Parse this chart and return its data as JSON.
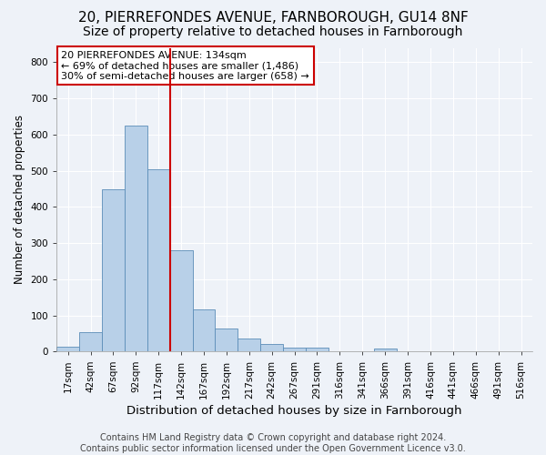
{
  "title": "20, PIERREFONDES AVENUE, FARNBOROUGH, GU14 8NF",
  "subtitle": "Size of property relative to detached houses in Farnborough",
  "xlabel": "Distribution of detached houses by size in Farnborough",
  "ylabel": "Number of detached properties",
  "bar_values": [
    13,
    55,
    450,
    625,
    505,
    280,
    117,
    63,
    35,
    22,
    10,
    10,
    0,
    0,
    8,
    0,
    0,
    0,
    0,
    0
  ],
  "bin_labels": [
    "17sqm",
    "42sqm",
    "67sqm",
    "92sqm",
    "117sqm",
    "142sqm",
    "167sqm",
    "192sqm",
    "217sqm",
    "242sqm",
    "267sqm",
    "291sqm",
    "316sqm",
    "341sqm",
    "366sqm",
    "391sqm",
    "416sqm",
    "441sqm",
    "466sqm",
    "491sqm",
    "516sqm"
  ],
  "bar_color": "#b8d0e8",
  "bar_edgecolor": "#5b8db8",
  "background_color": "#eef2f8",
  "plot_bg_color": "#eef2f8",
  "grid_color": "#ffffff",
  "vline_color": "#cc0000",
  "annotation_text": "20 PIERREFONDES AVENUE: 134sqm\n← 69% of detached houses are smaller (1,486)\n30% of semi-detached houses are larger (658) →",
  "annotation_box_color": "white",
  "annotation_box_edgecolor": "#cc0000",
  "ylim": [
    0,
    840
  ],
  "yticks": [
    0,
    100,
    200,
    300,
    400,
    500,
    600,
    700,
    800
  ],
  "footer_text": "Contains HM Land Registry data © Crown copyright and database right 2024.\nContains public sector information licensed under the Open Government Licence v3.0.",
  "title_fontsize": 11,
  "subtitle_fontsize": 10,
  "xlabel_fontsize": 9.5,
  "ylabel_fontsize": 8.5,
  "tick_fontsize": 7.5,
  "footer_fontsize": 7,
  "annotation_fontsize": 8
}
